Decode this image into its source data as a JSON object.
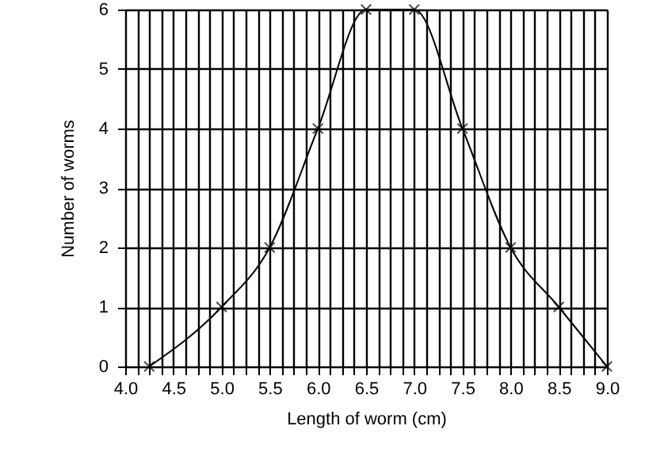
{
  "chart_data": {
    "type": "line",
    "xlabel": "Length of worm (cm)",
    "ylabel": "Number of worms",
    "x": [
      4.25,
      5.0,
      5.5,
      6.0,
      6.5,
      7.0,
      7.5,
      8.0,
      8.5,
      9.0
    ],
    "series": [
      {
        "color": "#000000",
        "values": [
          0,
          1,
          2,
          4,
          6,
          6,
          4,
          2,
          1,
          0
        ]
      }
    ],
    "xlim": [
      4.0,
      9.0
    ],
    "xticks": [
      {
        "value": 4.0,
        "label": "4.0"
      },
      {
        "value": 4.125,
        "label": null
      },
      {
        "value": 4.25,
        "label": null
      },
      {
        "value": 4.375,
        "label": null
      },
      {
        "value": 4.5,
        "label": "4.5"
      },
      {
        "value": 4.625,
        "label": null
      },
      {
        "value": 4.75,
        "label": null
      },
      {
        "value": 4.875,
        "label": null
      },
      {
        "value": 5.0,
        "label": "5.0"
      },
      {
        "value": 5.125,
        "label": null
      },
      {
        "value": 5.25,
        "label": null
      },
      {
        "value": 5.375,
        "label": null
      },
      {
        "value": 5.5,
        "label": "5.5"
      },
      {
        "value": 5.625,
        "label": null
      },
      {
        "value": 5.75,
        "label": null
      },
      {
        "value": 5.875,
        "label": null
      },
      {
        "value": 6.0,
        "label": "6.0"
      },
      {
        "value": 6.125,
        "label": null
      },
      {
        "value": 6.25,
        "label": null
      },
      {
        "value": 6.375,
        "label": null
      },
      {
        "value": 6.5,
        "label": "6.5"
      },
      {
        "value": 6.625,
        "label": null
      },
      {
        "value": 6.75,
        "label": null
      },
      {
        "value": 6.875,
        "label": null
      },
      {
        "value": 7.0,
        "label": "7.0"
      },
      {
        "value": 7.125,
        "label": null
      },
      {
        "value": 7.25,
        "label": null
      },
      {
        "value": 7.375,
        "label": null
      },
      {
        "value": 7.5,
        "label": "7.5"
      },
      {
        "value": 7.625,
        "label": null
      },
      {
        "value": 7.75,
        "label": null
      },
      {
        "value": 7.875,
        "label": null
      },
      {
        "value": 8.0,
        "label": "8.0"
      },
      {
        "value": 8.125,
        "label": null
      },
      {
        "value": 8.25,
        "label": null
      },
      {
        "value": 8.375,
        "label": null
      },
      {
        "value": 8.5,
        "label": "8.5"
      },
      {
        "value": 8.625,
        "label": null
      },
      {
        "value": 8.75,
        "label": null
      },
      {
        "value": 8.875,
        "label": null
      },
      {
        "value": 9.0,
        "label": "9.0"
      }
    ],
    "ylim": [
      0,
      6
    ],
    "yticks": [
      0,
      1,
      2,
      3,
      4,
      5,
      6
    ],
    "grid": true,
    "marker": "cross",
    "line_style": "solid"
  }
}
